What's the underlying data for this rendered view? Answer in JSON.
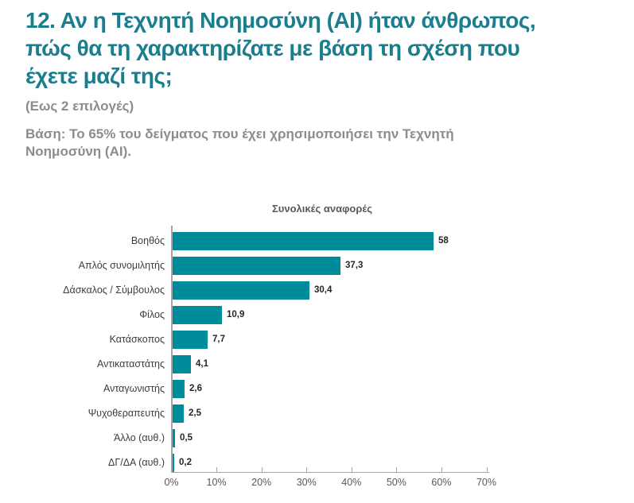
{
  "header": {
    "question_title": "12. Αν η Τεχνητή Νοημοσύνη (AI) ήταν άνθρωπος,\nπώς θα τη χαρακτηρίζατε με βάση τη σχέση που\nέχετε μαζί της;",
    "selection_note": "(Εως 2 επιλογές)",
    "base_note": "Βάση: Το 65% του δείγματος που έχει χρησιμοποιήσει την Τεχνητή\nΝοημοσύνη (AI)."
  },
  "colors": {
    "title_teal": "#1A7E8F",
    "bar_teal": "#008B9A",
    "note_gray": "#8C8C8C",
    "chart_title_gray": "#595959",
    "category_label_gray": "#3D3D3D",
    "value_label_dark": "#262626",
    "axis_gray": "#A6A6A6",
    "tick_label_gray": "#595959"
  },
  "chart_data": {
    "type": "bar",
    "orientation": "horizontal",
    "title": "Συνολικές αναφορές",
    "categories": [
      "Βοηθός",
      "Απλός συνομιλητής",
      "Δάσκαλος / Σύμβουλος",
      "Φίλος",
      "Κατάσκοπος",
      "Αντικαταστάτης",
      "Ανταγωνιστής",
      "Ψυχοθεραπευτής",
      "Άλλο (αυθ.)",
      "ΔΓ/ΔΑ (αυθ.)"
    ],
    "values": [
      58,
      37.3,
      30.4,
      10.9,
      7.7,
      4.1,
      2.6,
      2.5,
      0.5,
      0.2
    ],
    "value_labels": [
      "58",
      "37,3",
      "30,4",
      "10,9",
      "7,7",
      "4,1",
      "2,6",
      "2,5",
      "0,5",
      "0,2"
    ],
    "xlabel": "",
    "ylabel": "",
    "xlim": [
      0,
      70
    ],
    "x_tick_labels": [
      "0%",
      "10%",
      "20%",
      "30%",
      "40%",
      "50%",
      "60%",
      "70%"
    ],
    "grid": false,
    "legend": "none"
  }
}
